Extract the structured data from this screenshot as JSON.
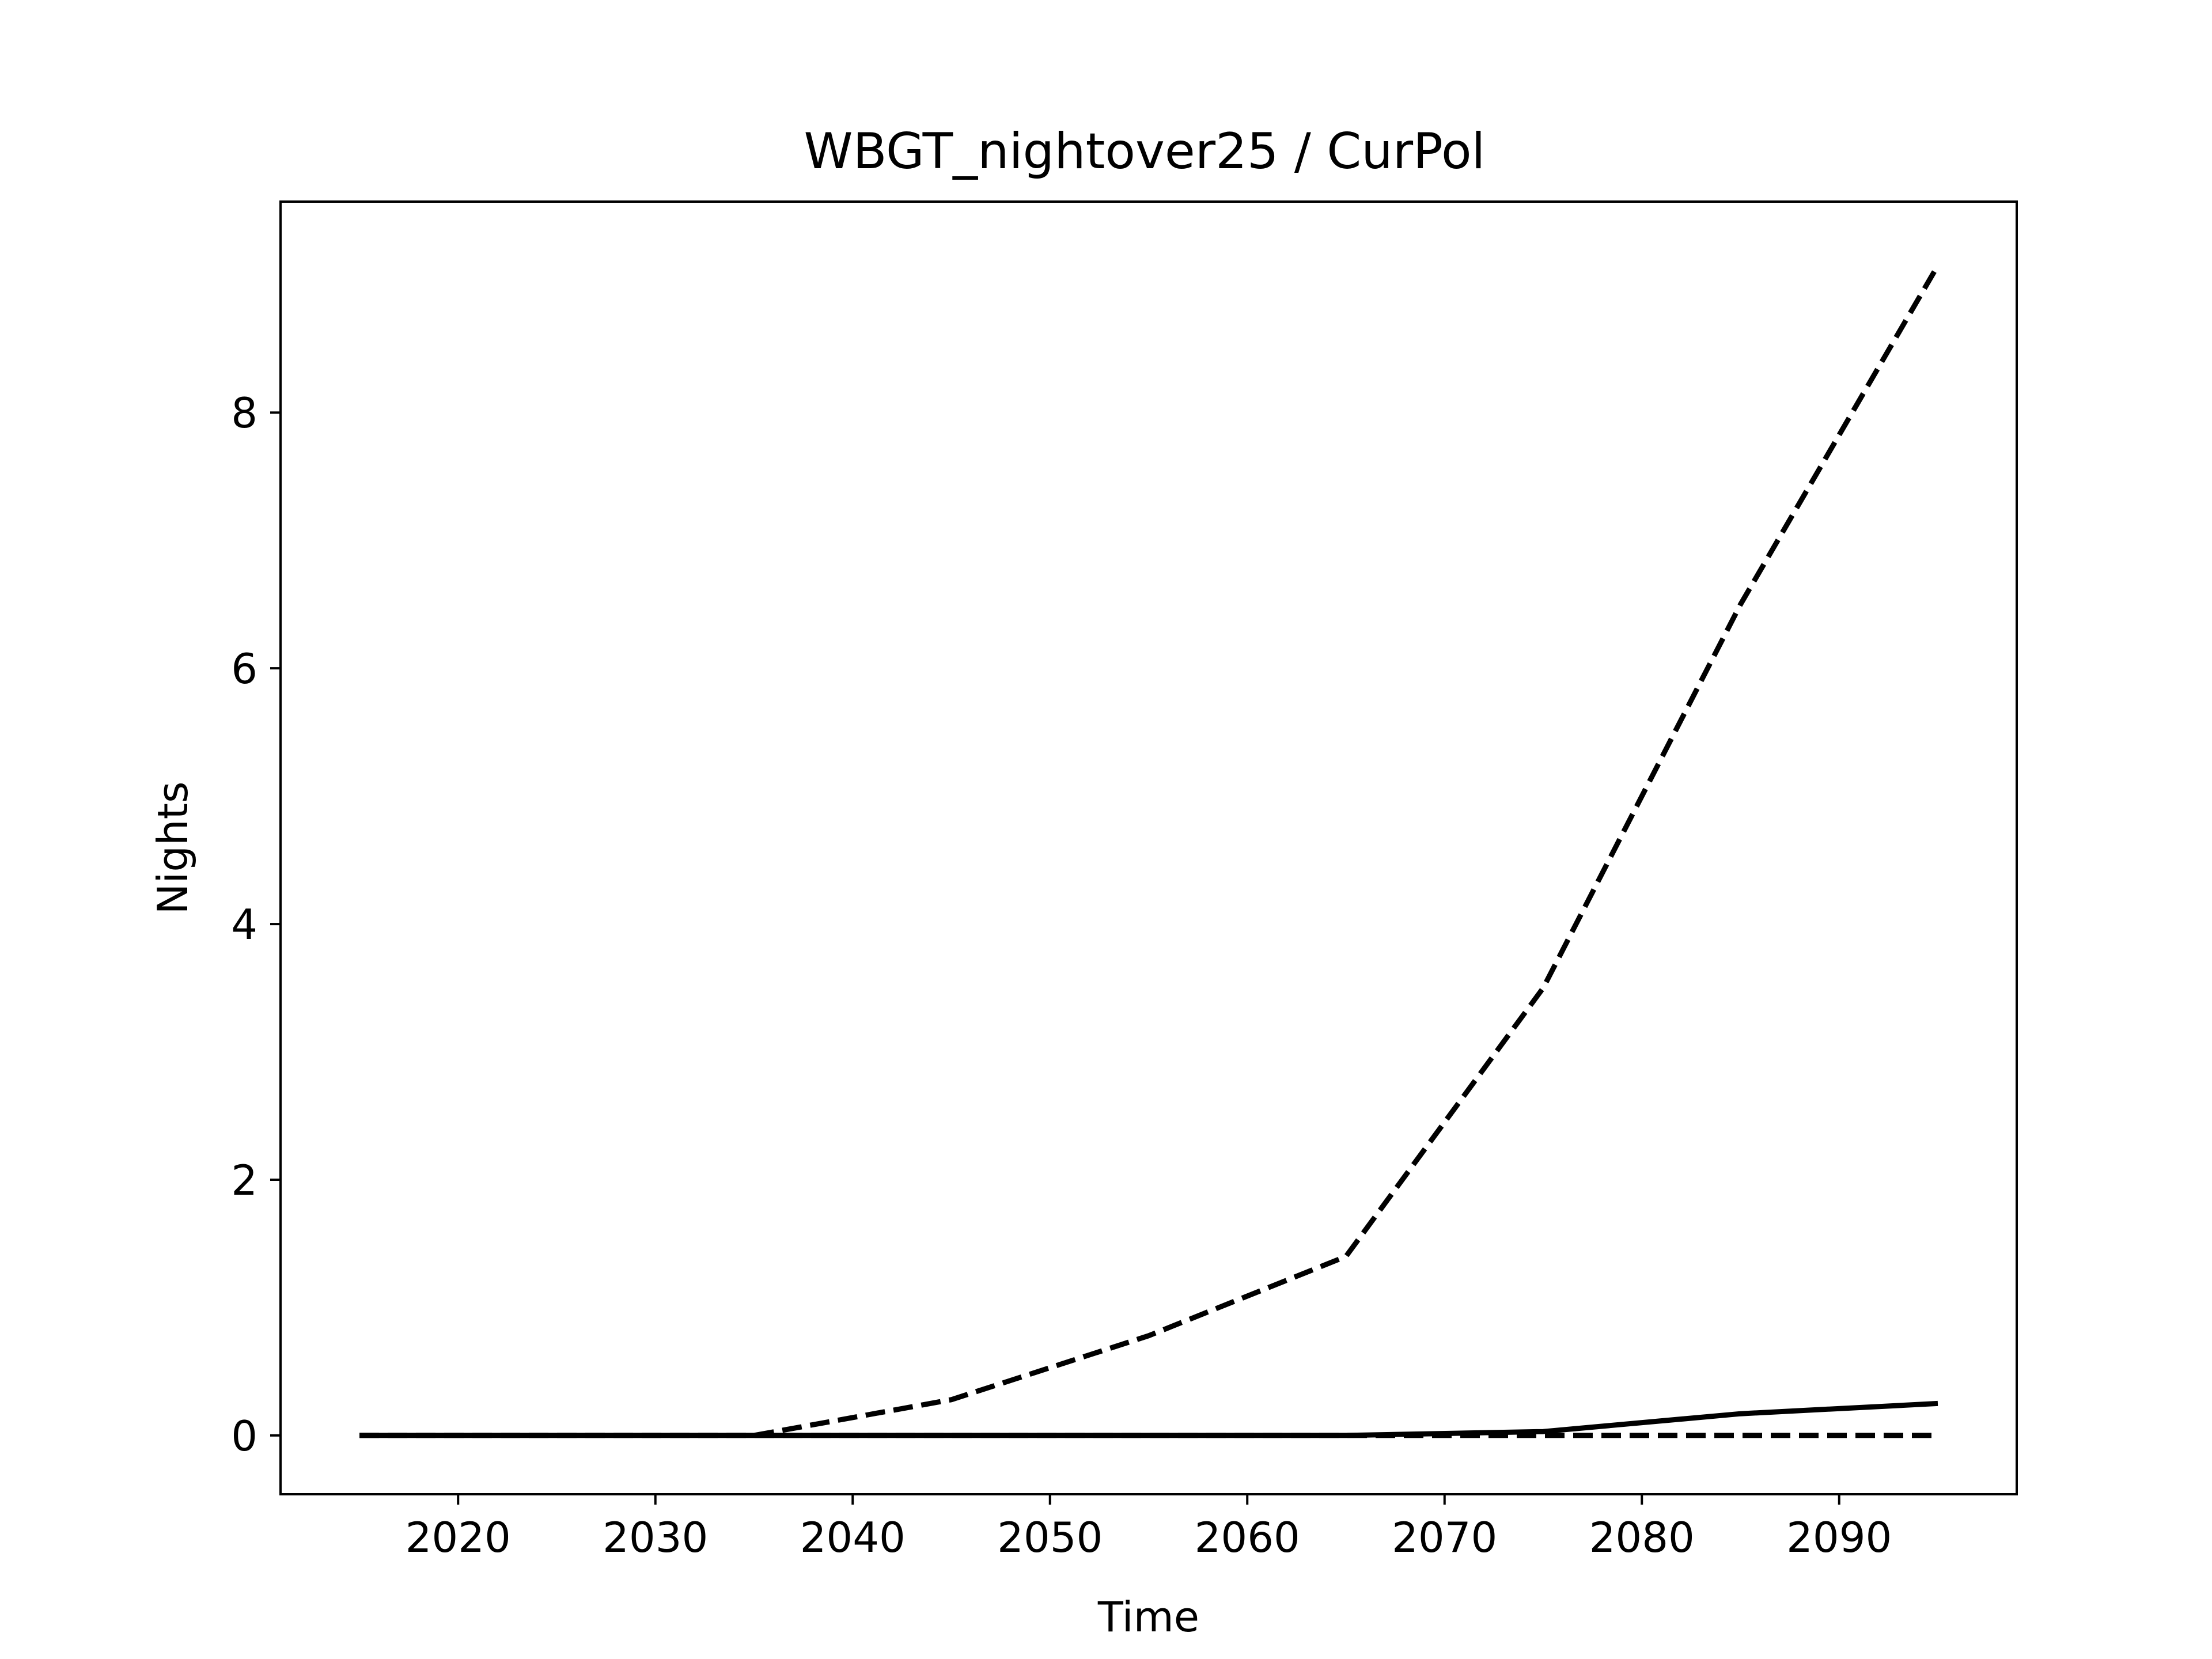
{
  "chart_data": {
    "type": "line",
    "title": "WBGT_nightover25 / CurPol",
    "xlabel": "Time",
    "ylabel": "Nights",
    "xlim": [
      2011,
      2099
    ],
    "ylim": [
      -0.46,
      9.65
    ],
    "x_ticks": [
      2020,
      2030,
      2040,
      2050,
      2060,
      2070,
      2080,
      2090
    ],
    "y_ticks": [
      0,
      2,
      4,
      6,
      8
    ],
    "grid": false,
    "legend": "none",
    "x": [
      2015,
      2025,
      2035,
      2045,
      2055,
      2065,
      2075,
      2085,
      2095
    ],
    "series": [
      {
        "style": "dashed",
        "color": "#000000",
        "values": [
          0,
          0,
          0,
          0.28,
          0.78,
          1.4,
          3.5,
          6.5,
          9.15
        ]
      },
      {
        "style": "solid",
        "color": "#000000",
        "values": [
          0,
          0,
          0,
          0,
          0,
          0,
          0.03,
          0.17,
          0.25
        ]
      },
      {
        "style": "dashed",
        "color": "#000000",
        "values": [
          0,
          0,
          0,
          0,
          0,
          0,
          0,
          0,
          0
        ]
      }
    ]
  }
}
